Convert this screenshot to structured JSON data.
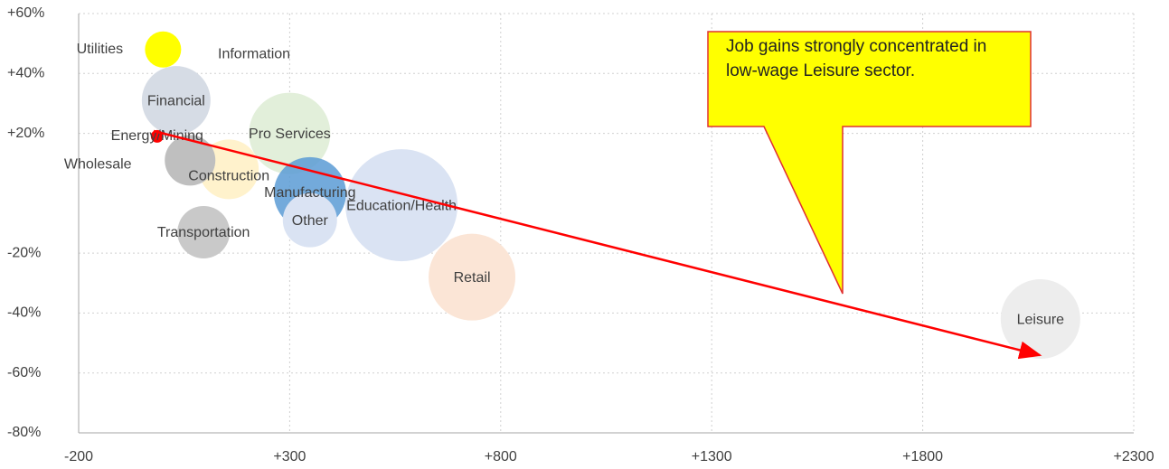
{
  "chart_data": {
    "type": "bubble",
    "annotation": "Job gains strongly concentrated in low-wage Leisure sector.",
    "xlim": [
      -200,
      2300
    ],
    "xticks": [
      -200,
      {
        "value": 300,
        "label": "+300"
      },
      {
        "value": 800,
        "label": "+800"
      },
      {
        "value": 1300,
        "label": "+1300"
      },
      {
        "value": 1800,
        "label": "+1800"
      },
      {
        "value": 2300,
        "label": "+2300"
      }
    ],
    "ylim": [
      -80,
      60
    ],
    "yticks": [
      {
        "value": -80,
        "label": "-80%"
      },
      {
        "value": -60,
        "label": "-60%"
      },
      {
        "value": -40,
        "label": "-40%"
      },
      {
        "value": -20,
        "label": "-20%"
      },
      {
        "value": 20,
        "label": "+20%"
      },
      {
        "value": 40,
        "label": "+40%"
      },
      {
        "value": 60,
        "label": "+60%"
      }
    ],
    "grid": true,
    "series": [
      {
        "name": "Utilities",
        "color": "#ffff00",
        "x": [
          0
        ],
        "values": [
          48
        ],
        "sizes": [
          400
        ]
      },
      {
        "name": "Information",
        "color": "#ffff00",
        "x": [
          10
        ],
        "values": [
          47
        ],
        "sizes": [
          100
        ]
      },
      {
        "name": "Financial",
        "color": "#d6dce5",
        "x": [
          31
        ],
        "values": [
          31
        ],
        "sizes": [
          1444
        ]
      },
      {
        "name": "Pro Services",
        "color": "#e2efda",
        "x": [
          300
        ],
        "values": [
          20
        ],
        "sizes": [
          2025
        ]
      },
      {
        "name": "Education/Health",
        "color": "#dae3f3",
        "x": [
          565
        ],
        "values": [
          -4
        ],
        "sizes": [
          3844
        ]
      },
      {
        "name": "Retail",
        "color": "#fbe5d6",
        "x": [
          732
        ],
        "values": [
          -28
        ],
        "sizes": [
          2304
        ]
      },
      {
        "name": "Leisure",
        "color": "#ededed",
        "x": [
          2079
        ],
        "values": [
          -42
        ],
        "sizes": [
          1936
        ]
      },
      {
        "name": "Construction",
        "color": "#fff2cc",
        "x": [
          156
        ],
        "values": [
          8
        ],
        "sizes": [
          1089
        ]
      },
      {
        "name": "Manufacturing",
        "color": "#5b9bd5",
        "x": [
          348
        ],
        "values": [
          0
        ],
        "sizes": [
          1600
        ]
      },
      {
        "name": "Other",
        "color": "#dae3f3",
        "x": [
          348
        ],
        "values": [
          -9
        ],
        "sizes": [
          900
        ]
      },
      {
        "name": "Wholesale",
        "color": "#bfbfbf",
        "x": [
          64
        ],
        "values": [
          11
        ],
        "sizes": [
          784
        ]
      },
      {
        "name": "Transportation",
        "color": "#c9c9c9",
        "x": [
          96
        ],
        "values": [
          -13
        ],
        "sizes": [
          841
        ]
      },
      {
        "name": "Energy/Mining",
        "color": "#ff0000",
        "x": [
          -14
        ],
        "values": [
          19
        ],
        "sizes": [
          49
        ]
      }
    ]
  }
}
